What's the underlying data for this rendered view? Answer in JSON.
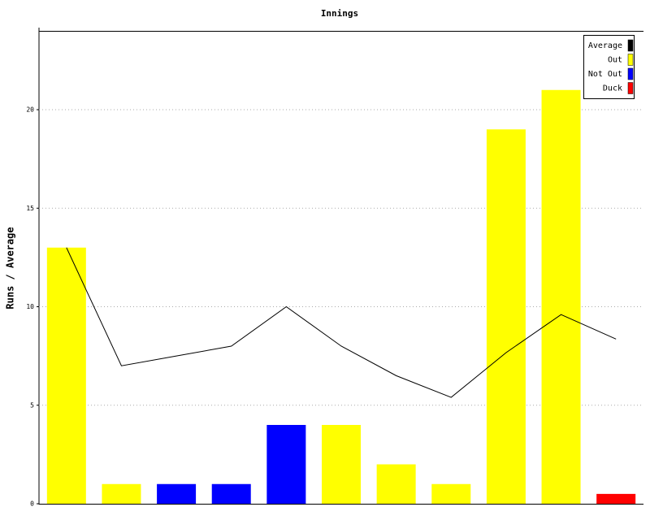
{
  "chart_data": {
    "type": "bar",
    "title": "Innings",
    "y_label": "Runs / Average",
    "categories": [
      null,
      null,
      null,
      null,
      null,
      null,
      null,
      null,
      null,
      null,
      null
    ],
    "series": [
      {
        "name": "Average",
        "color": "#000000",
        "kind": "line",
        "values": [
          13,
          7,
          7.5,
          8,
          10,
          8,
          6.5,
          5.4,
          7.67,
          9.6,
          8.36
        ]
      },
      {
        "name": "Out",
        "color": "#ffff00",
        "kind": "bar",
        "values": [
          13,
          1,
          null,
          null,
          null,
          4,
          2,
          1,
          19,
          21,
          null
        ]
      },
      {
        "name": "Not Out",
        "color": "#0000ff",
        "kind": "bar",
        "values": [
          null,
          null,
          1,
          1,
          4,
          null,
          null,
          null,
          null,
          null,
          null
        ]
      },
      {
        "name": "Duck",
        "color": "#ff0000",
        "kind": "bar",
        "values": [
          null,
          null,
          null,
          null,
          null,
          null,
          null,
          null,
          null,
          null,
          0.5
        ]
      }
    ],
    "ylim": [
      0,
      24
    ],
    "yticks": [
      0,
      5,
      10,
      15,
      20
    ],
    "grid": true,
    "legend": "top-right"
  }
}
